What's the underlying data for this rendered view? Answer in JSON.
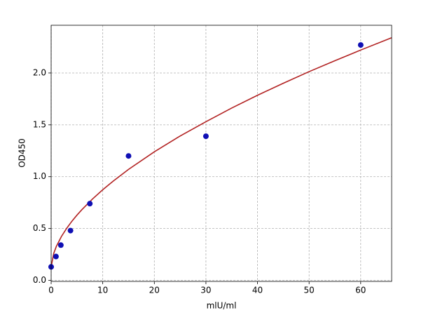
{
  "chart_data": {
    "type": "scatter",
    "x_label": "mlU/ml",
    "y_label": "OD450",
    "xlim": [
      0,
      66
    ],
    "ylim": [
      -0.01,
      2.46
    ],
    "xticks": [
      0,
      10,
      20,
      30,
      40,
      50,
      60
    ],
    "yticks": [
      {
        "value": 0,
        "label": "0.0"
      },
      0.5,
      {
        "value": 1,
        "label": "1.0"
      },
      1.5,
      {
        "value": 2,
        "label": "2.0"
      }
    ],
    "grid": true,
    "points": {
      "color": "#0f0fb4",
      "x": [
        0,
        0.94,
        1.88,
        3.75,
        7.5,
        15,
        30,
        60
      ],
      "values": [
        0.13,
        0.23,
        0.34,
        0.48,
        0.74,
        1.2,
        1.39,
        2.27
      ]
    },
    "curve": {
      "color": "#b22222",
      "x": [
        0,
        0.5,
        1,
        2,
        3,
        4,
        5,
        6,
        8,
        10,
        12,
        15,
        20,
        25,
        30,
        35,
        40,
        45,
        50,
        55,
        60,
        66
      ],
      "values": [
        0.13,
        0.26,
        0.327,
        0.424,
        0.501,
        0.569,
        0.629,
        0.684,
        0.784,
        0.874,
        0.956,
        1.07,
        1.24,
        1.392,
        1.53,
        1.662,
        1.785,
        1.901,
        2.013,
        2.118,
        2.221,
        2.34
      ]
    }
  }
}
